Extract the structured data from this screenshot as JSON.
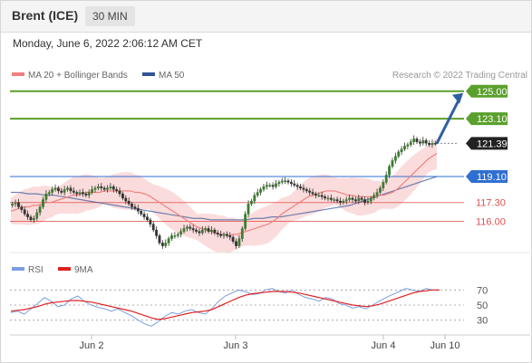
{
  "header": {
    "instrument": "Brent (ICE)",
    "timeframe": "30 MIN"
  },
  "timestamp": "Monday, June 6, 2022 2:06:12 AM CET",
  "legend_main": {
    "ma20": "MA 20 + Bollinger Bands",
    "ma50": "MA 50",
    "colors": {
      "ma20": "#f08080",
      "ma50": "#2f5597"
    }
  },
  "credit": "Research © 2022 Trading Central",
  "legend_rsi": {
    "rsi": "RSI",
    "ma9": "9MA",
    "colors": {
      "rsi": "#7a9ee0",
      "ma9": "#e02020"
    }
  },
  "chart_data": [
    {
      "type": "candlestick",
      "panel": "price",
      "price_scale": [
        114.9,
        125.3
      ],
      "levels": [
        {
          "label": "125.00",
          "value": 125.0,
          "color": "#5aa02c",
          "kind": "target"
        },
        {
          "label": "123.10",
          "value": 123.1,
          "color": "#5aa02c",
          "kind": "target"
        },
        {
          "label": "121.39",
          "value": 121.39,
          "color": "#222222",
          "kind": "last"
        },
        {
          "label": "119.10",
          "value": 119.1,
          "color": "#2f6fd0",
          "kind": "pivot"
        },
        {
          "label": "117.30",
          "value": 117.3,
          "color": "#e05050",
          "kind": "support"
        },
        {
          "label": "116.00",
          "value": 116.0,
          "color": "#e05050",
          "kind": "support"
        }
      ],
      "close_series": [
        117.2,
        117.3,
        117.0,
        116.8,
        116.5,
        116.3,
        116.1,
        116.2,
        116.6,
        117.0,
        117.5,
        117.9,
        118.0,
        118.2,
        118.3,
        118.1,
        118.0,
        118.2,
        118.3,
        118.1,
        118.0,
        117.9,
        118.0,
        117.9,
        117.8,
        118.0,
        118.2,
        118.3,
        118.4,
        118.3,
        118.2,
        118.3,
        118.4,
        118.2,
        118.1,
        117.9,
        117.6,
        117.4,
        117.2,
        117.0,
        116.9,
        116.7,
        116.5,
        116.3,
        116.1,
        115.8,
        115.4,
        115.0,
        114.5,
        114.3,
        114.5,
        114.8,
        115.0,
        115.0,
        115.1,
        115.3,
        115.5,
        115.6,
        115.5,
        115.4,
        115.3,
        115.2,
        115.4,
        115.5,
        115.3,
        115.4,
        115.2,
        115.1,
        115.0,
        115.1,
        115.0,
        114.9,
        114.6,
        114.3,
        114.8,
        115.5,
        116.5,
        117.2,
        117.4,
        117.8,
        118.0,
        118.2,
        118.4,
        118.5,
        118.5,
        118.4,
        118.6,
        118.7,
        118.8,
        118.8,
        118.7,
        118.6,
        118.5,
        118.4,
        118.3,
        118.2,
        118.1,
        118.0,
        117.9,
        117.8,
        117.8,
        117.7,
        117.6,
        117.6,
        117.5,
        117.5,
        117.4,
        117.3,
        117.4,
        117.5,
        117.6,
        117.5,
        117.4,
        117.6,
        117.5,
        117.3,
        117.4,
        117.6,
        117.8,
        118.0,
        118.3,
        118.7,
        119.2,
        119.8,
        120.2,
        120.5,
        120.8,
        121.0,
        121.2,
        121.3,
        121.5,
        121.7,
        121.5,
        121.4,
        121.6,
        121.4,
        121.3,
        121.4,
        121.39
      ],
      "ma20_series": [
        116.7,
        116.8,
        116.9,
        117.0,
        117.0,
        117.1,
        117.1,
        117.2,
        117.3,
        117.3,
        117.4,
        117.5,
        117.6,
        117.7,
        117.8,
        117.8,
        117.9,
        118.0,
        118.0,
        118.0,
        118.0,
        118.1,
        118.1,
        118.1,
        118.1,
        118.1,
        118.1,
        118.1,
        118.0,
        118.0,
        117.9,
        117.8,
        117.6,
        117.4,
        117.2,
        117.0,
        116.8,
        116.6,
        116.4,
        116.2,
        116.0,
        115.8,
        115.6,
        115.5,
        115.4,
        115.3,
        115.2,
        115.1,
        115.1,
        115.0,
        115.1,
        115.1,
        115.2,
        115.3,
        115.4,
        115.5,
        115.6,
        115.7,
        115.8,
        116.0,
        116.2,
        116.5,
        116.7,
        116.9,
        117.1,
        117.3,
        117.5,
        117.7,
        117.8,
        117.9,
        118.0,
        118.1,
        118.1,
        118.1,
        118.0,
        117.9,
        117.8,
        117.8,
        117.7,
        117.7,
        117.7,
        117.7,
        117.7,
        117.8,
        117.8,
        117.9,
        118.0,
        118.2,
        118.5,
        118.8,
        119.1,
        119.4,
        119.7,
        120.0,
        120.3,
        120.5,
        120.7
      ],
      "ma50_series": [
        118.0,
        118.0,
        117.9,
        117.9,
        117.8,
        117.8,
        117.7,
        117.6,
        117.5,
        117.4,
        117.3,
        117.2,
        117.1,
        117.0,
        116.9,
        116.8,
        116.7,
        116.6,
        116.5,
        116.4,
        116.3,
        116.2,
        116.2,
        116.1,
        116.1,
        116.1,
        116.1,
        116.1,
        116.2,
        116.2,
        116.3,
        116.3,
        116.4,
        116.5,
        116.6,
        116.7,
        116.8,
        116.9,
        117.0,
        117.1,
        117.3,
        117.5,
        117.7,
        117.9,
        118.1,
        118.3,
        118.5,
        118.7,
        118.9,
        119.1
      ],
      "projection": {
        "from": 121.39,
        "to": 125.0
      },
      "x_tick_labels": [
        "Jun 2",
        "Jun 3",
        "Jun 4",
        "Jun 10"
      ]
    },
    {
      "type": "line",
      "panel": "rsi",
      "ylim": [
        20,
        80
      ],
      "y_tick_labels": [
        "70",
        "50",
        "30"
      ],
      "series": [
        {
          "name": "RSI",
          "values": [
            40,
            42,
            38,
            45,
            52,
            60,
            55,
            48,
            50,
            58,
            62,
            55,
            50,
            47,
            45,
            42,
            45,
            40,
            36,
            30,
            25,
            22,
            28,
            35,
            40,
            38,
            42,
            44,
            40,
            38,
            45,
            55,
            62,
            66,
            70,
            68,
            64,
            65,
            70,
            72,
            68,
            66,
            70,
            64,
            60,
            58,
            55,
            60,
            58,
            52,
            50,
            46,
            48,
            45,
            50,
            55,
            60,
            64,
            68,
            72,
            70,
            68,
            72,
            70,
            70
          ]
        },
        {
          "name": "9MA",
          "values": [
            42,
            43,
            44,
            46,
            48,
            51,
            53,
            54,
            55,
            56,
            56,
            55,
            54,
            52,
            50,
            48,
            46,
            44,
            42,
            39,
            36,
            33,
            31,
            32,
            34,
            36,
            38,
            40,
            41,
            42,
            44,
            48,
            52,
            56,
            60,
            63,
            65,
            66,
            67,
            68,
            68,
            68,
            67,
            66,
            64,
            62,
            60,
            58,
            56,
            54,
            52,
            50,
            49,
            48,
            49,
            51,
            54,
            57,
            60,
            63,
            66,
            68,
            69,
            70,
            70
          ]
        }
      ]
    }
  ]
}
